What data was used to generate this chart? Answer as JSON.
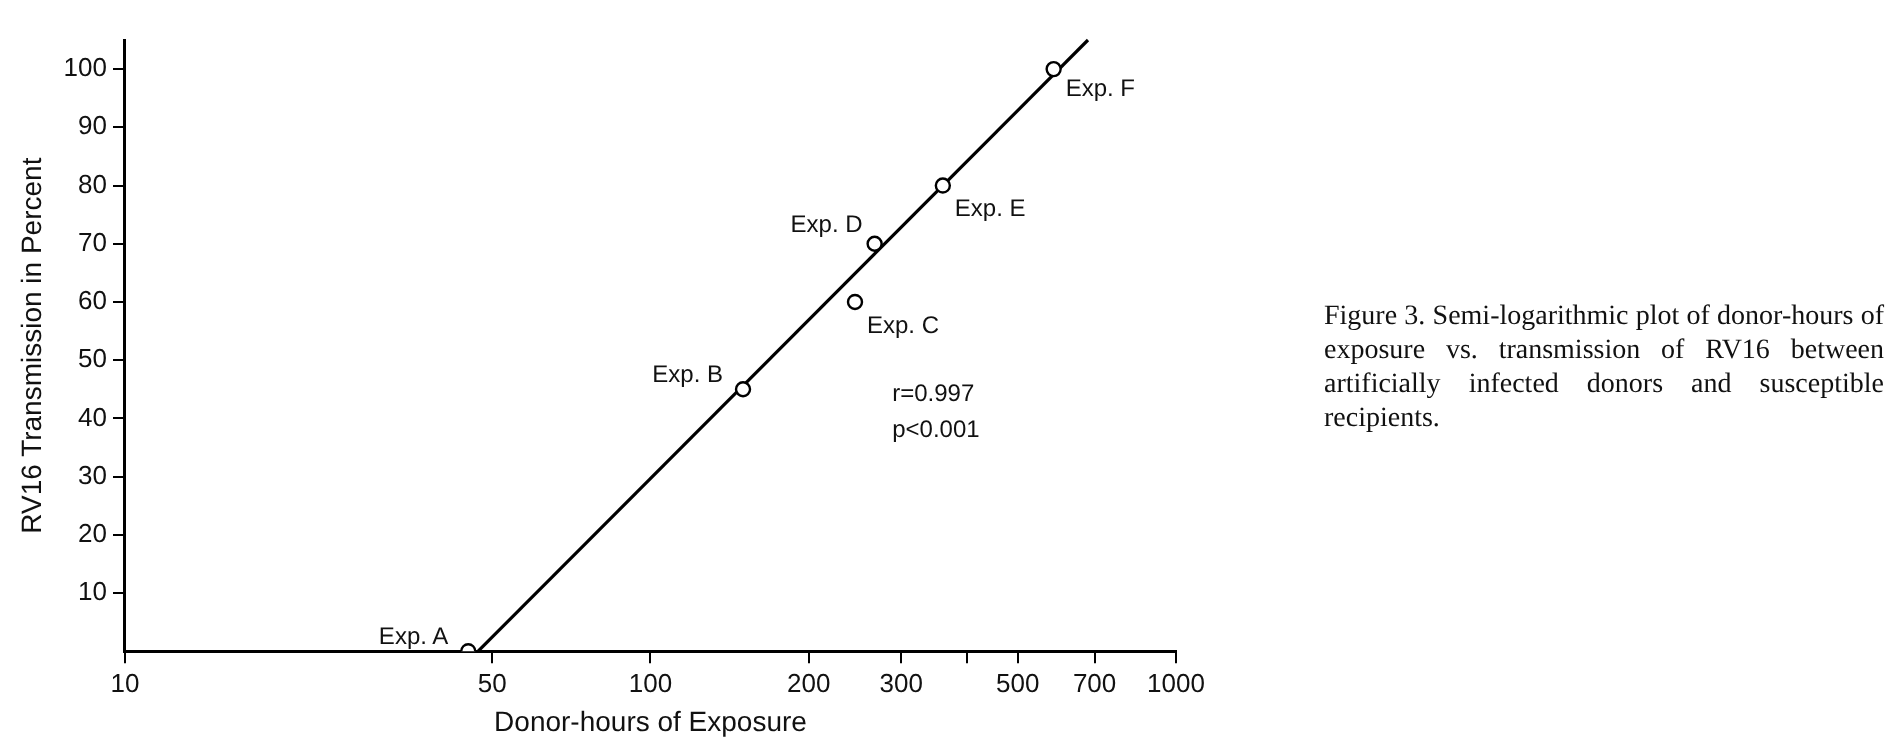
{
  "chart_data": {
    "type": "scatter",
    "xlabel": "Donor-hours of Exposure",
    "ylabel": "RV16 Transmission in Percent",
    "log": "x",
    "grid": false,
    "legend": false,
    "xlim": [
      10,
      1000
    ],
    "xticks": [
      10,
      50,
      100,
      200,
      300,
      {
        "value": 400,
        "label": null
      },
      500,
      700,
      1000
    ],
    "ylim": [
      0,
      105
    ],
    "yticks": [
      10,
      20,
      30,
      40,
      50,
      60,
      70,
      80,
      90,
      100
    ],
    "series": [
      {
        "type": "scatter",
        "color": "#000000",
        "marker": "circle",
        "x": [
          45,
          150,
          245,
          267,
          360,
          585
        ],
        "values": [
          0,
          45,
          60,
          70,
          80,
          100
        ]
      },
      {
        "type": "line",
        "color": "#000000",
        "marker": "none",
        "x": [
          47,
          680
        ],
        "values": [
          0,
          105
        ]
      }
    ],
    "annotations": [
      {
        "text": "Exp. A",
        "x": 45,
        "y": 0
      },
      {
        "text": "Exp. B",
        "x": 150,
        "y": 45
      },
      {
        "text": "Exp. C",
        "x": 245,
        "y": 60
      },
      {
        "text": "Exp. D",
        "x": 267,
        "y": 70
      },
      {
        "text": "Exp. E",
        "x": 360,
        "y": 80
      },
      {
        "text": "Exp. F",
        "x": 585,
        "y": 100
      },
      "r=0.997",
      "p<0.001",
      "Figure 3. Semi-logarithmic plot of donor-hours of exposure vs. transmission of RV16 between artificially infected donors and susceptible recipients."
    ]
  }
}
